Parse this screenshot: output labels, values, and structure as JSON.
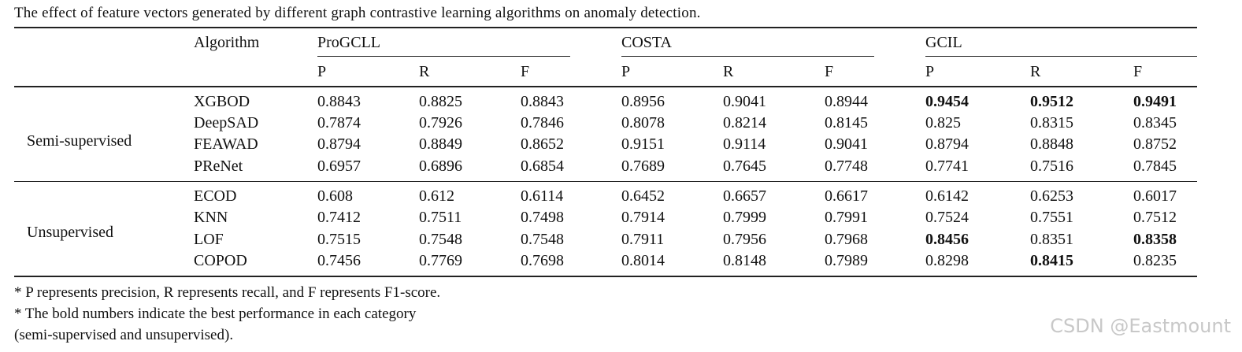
{
  "caption": "The effect of feature vectors generated by different graph contrastive learning algorithms on anomaly detection.",
  "header": {
    "algorithm_label": "Algorithm",
    "methods": [
      "ProGCLL",
      "COSTA",
      "GCIL"
    ],
    "metrics": [
      "P",
      "R",
      "F"
    ]
  },
  "groups": [
    {
      "name": "Semi-supervised",
      "rows": [
        {
          "algorithm": "XGBOD",
          "values": [
            "0.8843",
            "0.8825",
            "0.8843",
            "0.8956",
            "0.9041",
            "0.8944",
            "0.9454",
            "0.9512",
            "0.9491"
          ],
          "bold": [
            6,
            7,
            8
          ]
        },
        {
          "algorithm": "DeepSAD",
          "values": [
            "0.7874",
            "0.7926",
            "0.7846",
            "0.8078",
            "0.8214",
            "0.8145",
            "0.825",
            "0.8315",
            "0.8345"
          ],
          "bold": []
        },
        {
          "algorithm": "FEAWAD",
          "values": [
            "0.8794",
            "0.8849",
            "0.8652",
            "0.9151",
            "0.9114",
            "0.9041",
            "0.8794",
            "0.8848",
            "0.8752"
          ],
          "bold": []
        },
        {
          "algorithm": "PReNet",
          "values": [
            "0.6957",
            "0.6896",
            "0.6854",
            "0.7689",
            "0.7645",
            "0.7748",
            "0.7741",
            "0.7516",
            "0.7845"
          ],
          "bold": []
        }
      ]
    },
    {
      "name": "Unsupervised",
      "rows": [
        {
          "algorithm": "ECOD",
          "values": [
            "0.608",
            "0.612",
            "0.6114",
            "0.6452",
            "0.6657",
            "0.6617",
            "0.6142",
            "0.6253",
            "0.6017"
          ],
          "bold": []
        },
        {
          "algorithm": "KNN",
          "values": [
            "0.7412",
            "0.7511",
            "0.7498",
            "0.7914",
            "0.7999",
            "0.7991",
            "0.7524",
            "0.7551",
            "0.7512"
          ],
          "bold": []
        },
        {
          "algorithm": "LOF",
          "values": [
            "0.7515",
            "0.7548",
            "0.7548",
            "0.7911",
            "0.7956",
            "0.7968",
            "0.8456",
            "0.8351",
            "0.8358"
          ],
          "bold": [
            6,
            8
          ]
        },
        {
          "algorithm": "COPOD",
          "values": [
            "0.7456",
            "0.7769",
            "0.7698",
            "0.8014",
            "0.8148",
            "0.7989",
            "0.8298",
            "0.8415",
            "0.8235"
          ],
          "bold": [
            7
          ]
        }
      ]
    }
  ],
  "notes": [
    "* P represents precision, R represents recall, and F represents F1-score.",
    "* The bold numbers indicate the best performance in each category",
    "(semi-supervised and unsupervised)."
  ],
  "watermark": "CSDN @Eastmount"
}
